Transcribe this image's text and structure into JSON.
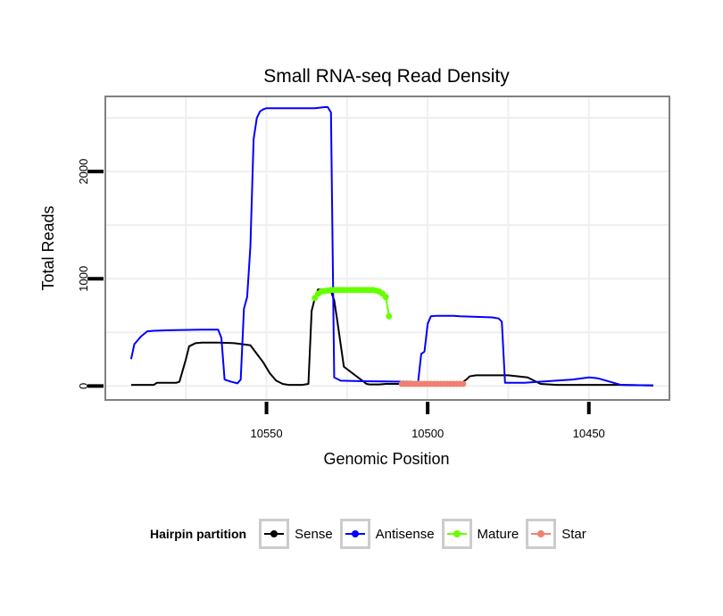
{
  "chart_data": {
    "type": "line",
    "title": "Small RNA-seq Read Density",
    "xlabel": "Genomic Position",
    "ylabel": "Total Reads",
    "x_reversed": true,
    "xlim": [
      10600,
      10425
    ],
    "ylim": [
      -130,
      2700
    ],
    "x_ticks": [
      10550,
      10500,
      10450
    ],
    "x_tick_labels": [
      "10550",
      "10500",
      "10450"
    ],
    "y_ticks": [
      0,
      1000,
      2000
    ],
    "y_tick_labels": [
      "0",
      "1000",
      "2000"
    ],
    "grid": true,
    "legend_position": "bottom",
    "legend_title": "Hairpin partition",
    "colors": {
      "Sense": "#000000",
      "Antisense": "#0000ff",
      "Mature": "#66ff00",
      "Star": "#f08070"
    },
    "series": [
      {
        "name": "Sense",
        "type": "line",
        "x": [
          10592,
          10585,
          10584,
          10578,
          10577,
          10575,
          10574,
          10572,
          10570,
          10565,
          10560,
          10555,
          10553,
          10551,
          10549,
          10547,
          10545,
          10543,
          10539,
          10537,
          10536,
          10535,
          10534,
          10531,
          10530,
          10529,
          10528,
          10526,
          10519,
          10518,
          10517,
          10516,
          10515,
          10513,
          10500,
          10490,
          10488,
          10487,
          10485,
          10475,
          10469,
          10467,
          10465,
          10460,
          10458,
          10455,
          10450,
          10440,
          10430
        ],
        "y": [
          10,
          10,
          30,
          30,
          40,
          250,
          370,
          400,
          405,
          405,
          400,
          380,
          300,
          220,
          120,
          50,
          20,
          10,
          10,
          20,
          700,
          820,
          900,
          900,
          880,
          800,
          600,
          180,
          20,
          15,
          15,
          15,
          15,
          20,
          20,
          20,
          60,
          90,
          100,
          100,
          80,
          50,
          20,
          10,
          10,
          10,
          10,
          10,
          5
        ]
      },
      {
        "name": "Antisense",
        "type": "line",
        "x": [
          10592,
          10591,
          10589,
          10587,
          10585,
          10580,
          10570,
          10565,
          10564,
          10563,
          10561,
          10559,
          10558,
          10557,
          10556,
          10555,
          10554,
          10553,
          10552,
          10551,
          10550,
          10548,
          10535,
          10532,
          10531,
          10530,
          10529,
          10527,
          10520,
          10505,
          10503,
          10502,
          10501,
          10500,
          10499,
          10497,
          10495,
          10494,
          10493,
          10492,
          10490,
          10480,
          10478,
          10477,
          10476,
          10470,
          10455,
          10450,
          10448,
          10447,
          10440,
          10430
        ],
        "y": [
          250,
          390,
          460,
          510,
          515,
          520,
          525,
          525,
          450,
          60,
          40,
          25,
          60,
          720,
          830,
          1300,
          2300,
          2500,
          2560,
          2580,
          2590,
          2590,
          2590,
          2600,
          2600,
          2550,
          80,
          50,
          45,
          40,
          30,
          300,
          320,
          580,
          650,
          655,
          655,
          655,
          655,
          655,
          650,
          640,
          630,
          600,
          30,
          30,
          60,
          80,
          75,
          70,
          10,
          5
        ]
      },
      {
        "name": "Mature",
        "type": "points+line",
        "x": [
          10535,
          10534,
          10533,
          10532,
          10531,
          10530,
          10529,
          10528,
          10527,
          10526,
          10525,
          10524,
          10523,
          10522,
          10521,
          10520,
          10519,
          10518,
          10517,
          10516,
          10515,
          10514,
          10513,
          10512
        ],
        "y": [
          820,
          860,
          880,
          885,
          890,
          895,
          895,
          895,
          895,
          895,
          895,
          895,
          895,
          895,
          895,
          895,
          895,
          895,
          895,
          890,
          880,
          860,
          830,
          650
        ]
      },
      {
        "name": "Star",
        "type": "points+line",
        "x": [
          10508,
          10507,
          10506,
          10505,
          10504,
          10503,
          10502,
          10501,
          10500,
          10499,
          10498,
          10497,
          10496,
          10495,
          10494,
          10493,
          10492,
          10491,
          10490,
          10489
        ],
        "y": [
          20,
          20,
          20,
          20,
          20,
          20,
          20,
          20,
          20,
          20,
          20,
          20,
          20,
          20,
          20,
          20,
          20,
          20,
          20,
          20
        ]
      }
    ]
  }
}
